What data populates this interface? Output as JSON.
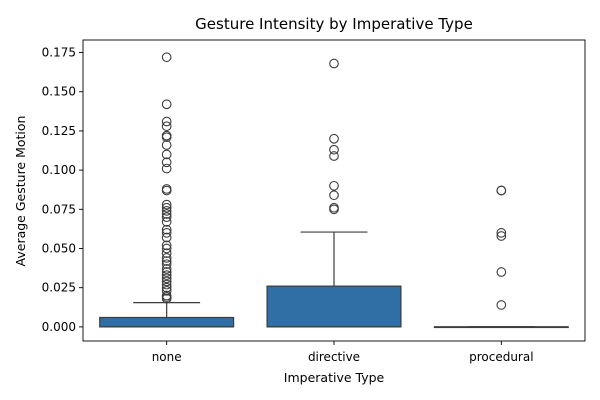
{
  "chart_data": {
    "type": "box",
    "title": "Gesture Intensity by Imperative Type",
    "xlabel": "Imperative Type",
    "ylabel": "Average Gesture Motion",
    "ylim": [
      -0.009,
      0.183
    ],
    "yticks": [
      0.0,
      0.025,
      0.05,
      0.075,
      0.1,
      0.125,
      0.15,
      0.175
    ],
    "ytick_labels": [
      "0.000",
      "0.025",
      "0.050",
      "0.075",
      "0.100",
      "0.125",
      "0.150",
      "0.175"
    ],
    "grid": false,
    "box_color": "#2f6fa6",
    "line_color": "#3d3d3d",
    "categories": [
      "none",
      "directive",
      "procedural"
    ],
    "boxes": [
      {
        "category": "none",
        "whisker_low": 0.0,
        "q1": 0.0,
        "median": 0.0,
        "q3": 0.006,
        "whisker_high": 0.0155,
        "fliers": [
          0.172,
          0.142,
          0.131,
          0.128,
          0.122,
          0.121,
          0.116,
          0.11,
          0.105,
          0.101,
          0.088,
          0.087,
          0.078,
          0.076,
          0.074,
          0.072,
          0.07,
          0.067,
          0.062,
          0.06,
          0.057,
          0.052,
          0.05,
          0.047,
          0.044,
          0.042,
          0.04,
          0.037,
          0.035,
          0.033,
          0.031,
          0.029,
          0.027,
          0.025,
          0.023,
          0.02,
          0.019,
          0.018
        ]
      },
      {
        "category": "directive",
        "whisker_low": 0.0,
        "q1": 0.0,
        "median": 0.0,
        "q3": 0.026,
        "whisker_high": 0.0605,
        "fliers": [
          0.168,
          0.12,
          0.113,
          0.109,
          0.09,
          0.084,
          0.076,
          0.075
        ]
      },
      {
        "category": "procedural",
        "whisker_low": 0.0,
        "q1": 0.0,
        "median": 0.0,
        "q3": 0.0,
        "whisker_high": 0.0,
        "fliers": [
          0.087,
          0.087,
          0.06,
          0.058,
          0.035,
          0.014
        ]
      }
    ]
  }
}
